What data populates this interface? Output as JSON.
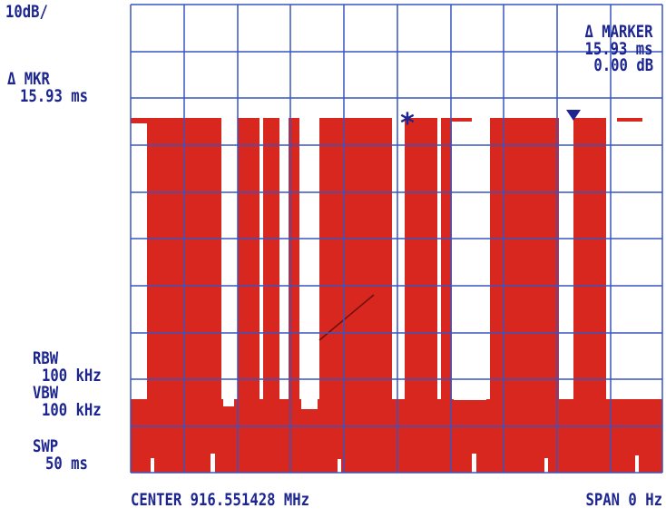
{
  "scale": "10dB/",
  "delta_mkr": {
    "label": "Δ MKR",
    "value": "15.93 ms"
  },
  "delta_marker": {
    "label": "Δ MARKER",
    "time": "15.93 ms",
    "level": "0.00 dB"
  },
  "rbw": {
    "label": "RBW",
    "value": "100 kHz"
  },
  "vbw": {
    "label": "VBW",
    "value": "100 kHz"
  },
  "swp": {
    "label": "SWP",
    "value": "50 ms"
  },
  "center": "CENTER 916.551428 MHz",
  "span": "SPAN 0 Hz"
}
